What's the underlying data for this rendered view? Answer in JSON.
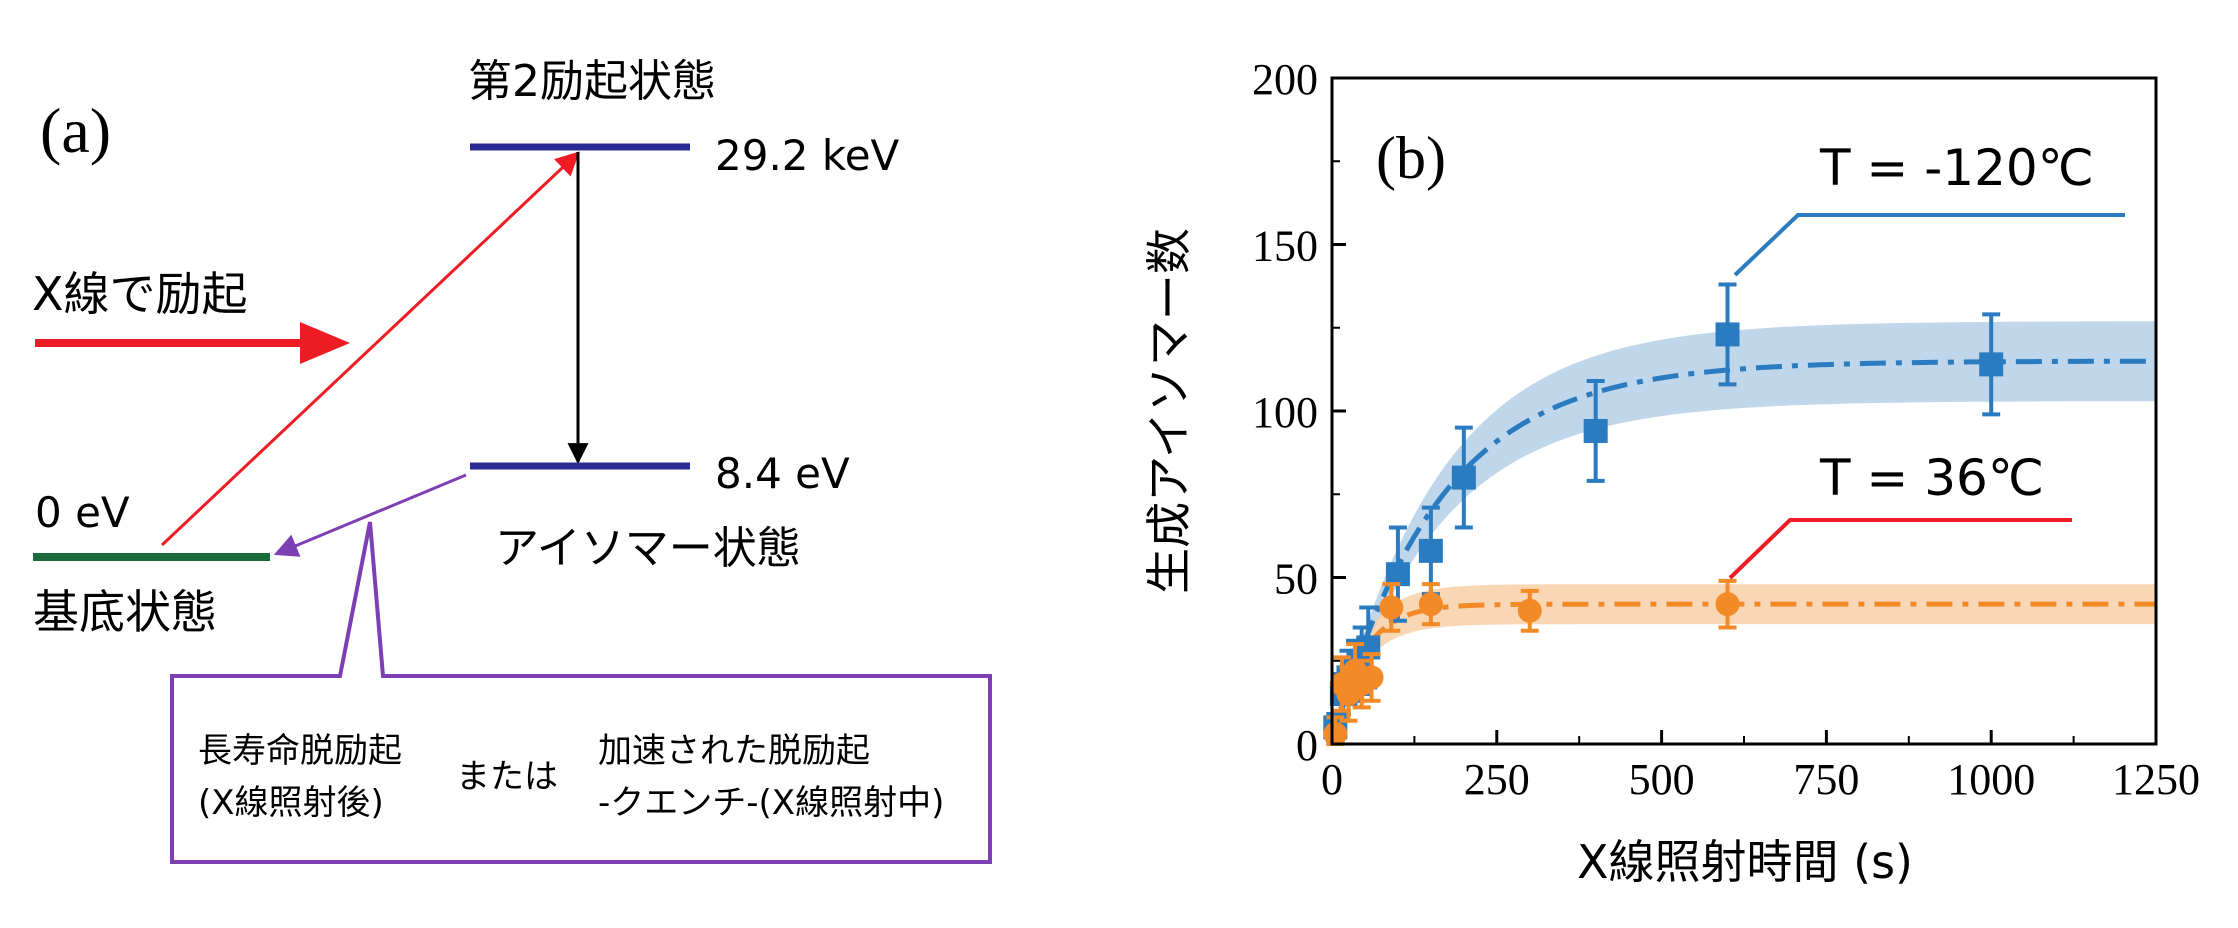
{
  "panel_a": {
    "label": "(a)",
    "second_excited_state": "第2励起状態",
    "second_excited_energy": "29.2 keV",
    "xray_excitation": "X線で励起",
    "isomer_energy": "8.4 eV",
    "isomer_state": "アイソマー状態",
    "ground_energy": "0 eV",
    "ground_state": "基底状態",
    "deexcitation_box": {
      "long_life_line1": "長寿命脱励起",
      "long_life_line2": "(X線照射後)",
      "or": "または",
      "accelerated_line1": "加速された脱励起",
      "accelerated_line2": "-クエンチ-(X線照射中)"
    },
    "colors": {
      "level": "#2b2b95",
      "ground_level": "#1a6b3a",
      "excitation_arrow": "#ee1c24",
      "decay_arrow": "#000000",
      "deexcitation": "#7d3fb4"
    }
  },
  "chart_data": {
    "type": "scatter",
    "panel_label": "(b)",
    "xlabel": "X線照射時間 (s)",
    "ylabel": "生成アイソマー数",
    "xlim": [
      0,
      1250
    ],
    "ylim": [
      0,
      200
    ],
    "xticks": [
      0,
      250,
      500,
      750,
      1000,
      1250
    ],
    "yticks": [
      0,
      50,
      100,
      150,
      200
    ],
    "series": [
      {
        "name": "T = -120℃",
        "color": "#2a7bbf",
        "band_color": "#b4cfe8",
        "marker": "square",
        "points": [
          {
            "x": 5,
            "y": 5,
            "err": 4
          },
          {
            "x": 15,
            "y": 15,
            "err": 6
          },
          {
            "x": 25,
            "y": 20,
            "err": 8
          },
          {
            "x": 35,
            "y": 22,
            "err": 9
          },
          {
            "x": 45,
            "y": 25,
            "err": 10
          },
          {
            "x": 55,
            "y": 29,
            "err": 12
          },
          {
            "x": 100,
            "y": 51,
            "err": 14
          },
          {
            "x": 150,
            "y": 58,
            "err": 13
          },
          {
            "x": 200,
            "y": 80,
            "err": 15
          },
          {
            "x": 400,
            "y": 94,
            "err": 15
          },
          {
            "x": 600,
            "y": 123,
            "err": 15
          },
          {
            "x": 1000,
            "y": 114,
            "err": 15
          }
        ],
        "fit": {
          "asymptote": 115,
          "tau": 160,
          "band_halfwidth": 12
        }
      },
      {
        "name": "T = 36℃",
        "color": "#f28a27",
        "band_color": "#f8d0a8",
        "marker": "circle",
        "points": [
          {
            "x": 5,
            "y": 3,
            "err": 5
          },
          {
            "x": 15,
            "y": 18,
            "err": 8
          },
          {
            "x": 25,
            "y": 15,
            "err": 8
          },
          {
            "x": 35,
            "y": 22,
            "err": 8
          },
          {
            "x": 45,
            "y": 18,
            "err": 7
          },
          {
            "x": 60,
            "y": 20,
            "err": 7
          },
          {
            "x": 90,
            "y": 41,
            "err": 7
          },
          {
            "x": 150,
            "y": 42,
            "err": 6
          },
          {
            "x": 300,
            "y": 40,
            "err": 6
          },
          {
            "x": 600,
            "y": 42,
            "err": 7
          }
        ],
        "fit": {
          "asymptote": 42,
          "tau": 45,
          "band_halfwidth": 6
        }
      }
    ]
  }
}
